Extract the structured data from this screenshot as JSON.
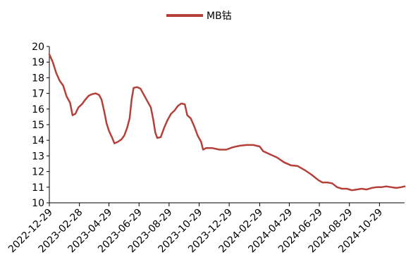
{
  "chart_data": {
    "type": "line",
    "title": "",
    "xlabel": "",
    "ylabel": "",
    "legend_position": "top",
    "grid": false,
    "ylim": [
      10,
      20
    ],
    "yticks": [
      10,
      11,
      12,
      13,
      14,
      15,
      16,
      17,
      18,
      19,
      20
    ],
    "xlim": [
      "2022-12-29",
      "2024-12-19"
    ],
    "xticks": [
      "2022-12-29",
      "2023-02-28",
      "2023-04-29",
      "2023-06-29",
      "2023-08-29",
      "2023-10-29",
      "2023-12-29",
      "2024-02-29",
      "2024-04-29",
      "2024-06-29",
      "2024-08-29",
      "2024-10-29"
    ],
    "series": [
      {
        "name": "MB钴",
        "color": "#b5403a",
        "points": [
          [
            "2022-12-29",
            19.5
          ],
          [
            "2023-01-05",
            19.0
          ],
          [
            "2023-01-12",
            18.3
          ],
          [
            "2023-01-19",
            17.8
          ],
          [
            "2023-01-26",
            17.5
          ],
          [
            "2023-02-02",
            16.8
          ],
          [
            "2023-02-09",
            16.4
          ],
          [
            "2023-02-14",
            15.6
          ],
          [
            "2023-02-20",
            15.7
          ],
          [
            "2023-02-26",
            16.1
          ],
          [
            "2023-03-05",
            16.3
          ],
          [
            "2023-03-12",
            16.6
          ],
          [
            "2023-03-19",
            16.85
          ],
          [
            "2023-03-26",
            16.95
          ],
          [
            "2023-04-02",
            17.0
          ],
          [
            "2023-04-09",
            16.9
          ],
          [
            "2023-04-14",
            16.6
          ],
          [
            "2023-04-19",
            15.9
          ],
          [
            "2023-04-24",
            15.1
          ],
          [
            "2023-04-29",
            14.6
          ],
          [
            "2023-05-05",
            14.2
          ],
          [
            "2023-05-10",
            13.8
          ],
          [
            "2023-05-17",
            13.9
          ],
          [
            "2023-05-24",
            14.05
          ],
          [
            "2023-05-30",
            14.3
          ],
          [
            "2023-06-05",
            14.8
          ],
          [
            "2023-06-10",
            15.4
          ],
          [
            "2023-06-14",
            16.6
          ],
          [
            "2023-06-18",
            17.35
          ],
          [
            "2023-06-25",
            17.4
          ],
          [
            "2023-07-02",
            17.3
          ],
          [
            "2023-07-09",
            16.9
          ],
          [
            "2023-07-16",
            16.5
          ],
          [
            "2023-07-23",
            16.1
          ],
          [
            "2023-07-28",
            15.3
          ],
          [
            "2023-08-01",
            14.5
          ],
          [
            "2023-08-05",
            14.15
          ],
          [
            "2023-08-12",
            14.2
          ],
          [
            "2023-08-19",
            14.8
          ],
          [
            "2023-08-26",
            15.3
          ],
          [
            "2023-09-02",
            15.7
          ],
          [
            "2023-09-09",
            15.9
          ],
          [
            "2023-09-16",
            16.2
          ],
          [
            "2023-09-23",
            16.35
          ],
          [
            "2023-09-30",
            16.3
          ],
          [
            "2023-10-05",
            15.6
          ],
          [
            "2023-10-12",
            15.4
          ],
          [
            "2023-10-19",
            14.9
          ],
          [
            "2023-10-26",
            14.3
          ],
          [
            "2023-11-02",
            13.9
          ],
          [
            "2023-11-06",
            13.4
          ],
          [
            "2023-11-12",
            13.5
          ],
          [
            "2023-11-25",
            13.5
          ],
          [
            "2023-12-09",
            13.4
          ],
          [
            "2023-12-23",
            13.4
          ],
          [
            "2024-01-05",
            13.55
          ],
          [
            "2024-01-19",
            13.65
          ],
          [
            "2024-02-02",
            13.7
          ],
          [
            "2024-02-16",
            13.7
          ],
          [
            "2024-02-29",
            13.6
          ],
          [
            "2024-03-07",
            13.3
          ],
          [
            "2024-03-21",
            13.1
          ],
          [
            "2024-04-04",
            12.9
          ],
          [
            "2024-04-18",
            12.6
          ],
          [
            "2024-05-02",
            12.4
          ],
          [
            "2024-05-16",
            12.35
          ],
          [
            "2024-05-30",
            12.1
          ],
          [
            "2024-06-13",
            11.8
          ],
          [
            "2024-06-27",
            11.45
          ],
          [
            "2024-07-05",
            11.3
          ],
          [
            "2024-07-15",
            11.3
          ],
          [
            "2024-07-25",
            11.25
          ],
          [
            "2024-08-04",
            11.0
          ],
          [
            "2024-08-14",
            10.9
          ],
          [
            "2024-08-24",
            10.9
          ],
          [
            "2024-09-03",
            10.8
          ],
          [
            "2024-09-13",
            10.85
          ],
          [
            "2024-09-23",
            10.9
          ],
          [
            "2024-10-03",
            10.85
          ],
          [
            "2024-10-13",
            10.95
          ],
          [
            "2024-10-23",
            11.0
          ],
          [
            "2024-11-02",
            11.0
          ],
          [
            "2024-11-12",
            11.05
          ],
          [
            "2024-11-22",
            11.0
          ],
          [
            "2024-12-02",
            10.95
          ],
          [
            "2024-12-12",
            11.0
          ],
          [
            "2024-12-19",
            11.05
          ]
        ]
      }
    ]
  }
}
